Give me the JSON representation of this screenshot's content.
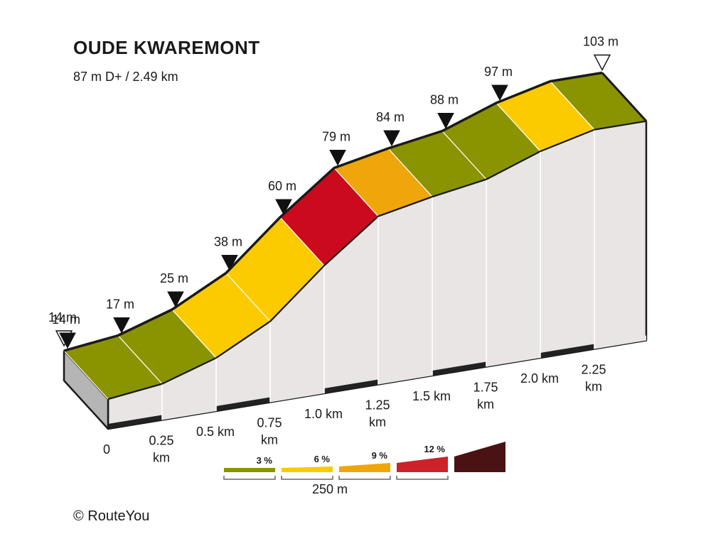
{
  "title": "OUDE KWAREMONT",
  "subtitle": "87 m D+ / 2.49 km",
  "copyright": "©  RouteYou",
  "chart_data": {
    "type": "area",
    "title": "OUDE KWAREMONT",
    "subtitle": "87 m D+ / 2.49 km",
    "x_unit": "km",
    "y_unit": "m",
    "points": [
      {
        "km": 0.0,
        "elev": 14
      },
      {
        "km": 0.25,
        "elev": 17
      },
      {
        "km": 0.5,
        "elev": 25
      },
      {
        "km": 0.75,
        "elev": 38
      },
      {
        "km": 1.0,
        "elev": 60
      },
      {
        "km": 1.25,
        "elev": 79
      },
      {
        "km": 1.5,
        "elev": 84
      },
      {
        "km": 1.75,
        "elev": 88
      },
      {
        "km": 2.0,
        "elev": 97
      },
      {
        "km": 2.25,
        "elev": 103
      }
    ],
    "segment_colors": [
      "#8a9400",
      "#8a9400",
      "#fbcb00",
      "#fbcb00",
      "#cc0a1e",
      "#eea60a",
      "#8a9400",
      "#8a9400",
      "#fbcb00",
      "#8a9400"
    ],
    "elevation_labels": [
      {
        "text": "14 m",
        "marker": "start"
      },
      {
        "text": "14 m",
        "marker": "split"
      },
      {
        "text": "17 m",
        "marker": "split"
      },
      {
        "text": "25 m",
        "marker": "split"
      },
      {
        "text": "38 m",
        "marker": "split"
      },
      {
        "text": "60 m",
        "marker": "split"
      },
      {
        "text": "79 m",
        "marker": "split"
      },
      {
        "text": "84 m",
        "marker": "split"
      },
      {
        "text": "88 m",
        "marker": "split"
      },
      {
        "text": "97 m",
        "marker": "split"
      },
      {
        "text": "103 m",
        "marker": "end"
      }
    ],
    "distance_labels": [
      [
        "0"
      ],
      [
        "0.25",
        "km"
      ],
      [
        "0.5 km"
      ],
      [
        "0.75",
        "km"
      ],
      [
        "1.0 km"
      ],
      [
        "1.25",
        "km"
      ],
      [
        "1.5 km"
      ],
      [
        "1.75",
        "km"
      ],
      [
        "2.0 km"
      ],
      [
        "2.25",
        "km"
      ]
    ],
    "legend": {
      "items": [
        {
          "label": "3 %",
          "color": "#8a9400"
        },
        {
          "label": "6 %",
          "color": "#fbcb00"
        },
        {
          "label": "9 %",
          "color": "#eea60a"
        },
        {
          "label": "12 %",
          "color": "#cc2229"
        },
        {
          "label": "",
          "color": "#4a1212"
        }
      ],
      "scale_label": "250 m"
    }
  }
}
